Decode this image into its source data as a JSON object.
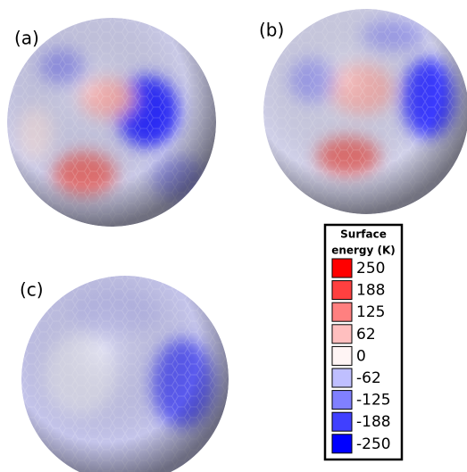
{
  "panels": [
    {
      "label": "(a)"
    },
    {
      "label": "(b)"
    },
    {
      "label": "(c)"
    }
  ],
  "legend": {
    "title_lines": [
      "Surface",
      "energy (K)"
    ],
    "entries": [
      {
        "label": "250",
        "color": "#ff0000"
      },
      {
        "label": "188",
        "color": "#ff4040"
      },
      {
        "label": "125",
        "color": "#ff8080"
      },
      {
        "label": "62",
        "color": "#ffbfbf"
      },
      {
        "label": "0",
        "color": "#fff5f5"
      },
      {
        "label": "-62",
        "color": "#bfbfff"
      },
      {
        "label": "-125",
        "color": "#8080ff"
      },
      {
        "label": "-188",
        "color": "#4040ff"
      },
      {
        "label": "-250",
        "color": "#0000ff"
      }
    ]
  }
}
